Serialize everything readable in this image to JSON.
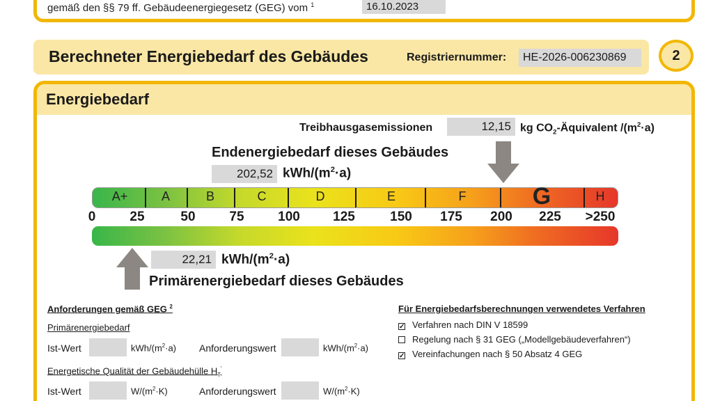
{
  "top": {
    "text": "gemäß den §§ 79 ff. Gebäudeenergiegesetz (GEG) vom",
    "footnote": "1",
    "date": "16.10.2023"
  },
  "section": {
    "title": "Berechneter Energiebedarf des Gebäudes",
    "registration_label": "Registriernummer:",
    "registration_number": "HE-2026-006230869",
    "number": "2"
  },
  "energy": {
    "heading": "Energiebedarf",
    "ghg_label": "Treibhausgasemissionen",
    "ghg_value": "12,15",
    "ghg_unit_prefix": "kg CO",
    "ghg_unit_sub": "2",
    "ghg_unit_suffix": "-Äquivalent /(m",
    "ghg_unit_sup": "2",
    "ghg_unit_end": "·a)",
    "end_label": "Endenergiebedarf dieses Gebäudes",
    "end_value": "202,52",
    "unit_prefix": "kWh/(m",
    "unit_sup": "2",
    "unit_end": "·a)",
    "primary_value": "22,21",
    "primary_label": "Primärenergiebedarf dieses Gebäudes",
    "end_value_numeric": 202.52,
    "primary_value_numeric": 22.21
  },
  "scale": {
    "classes": [
      "A+",
      "A",
      "B",
      "C",
      "D",
      "E",
      "F",
      "G",
      "H"
    ],
    "ticks": [
      "0",
      "25",
      "50",
      "75",
      "100",
      "125",
      "150",
      "175",
      "200",
      "225",
      ">250"
    ]
  },
  "requirements": {
    "title": "Anforderungen gemäß GEG",
    "title_sup": "2",
    "primary_heading": "Primärenergiebedarf",
    "actual_label": "Ist-Wert",
    "required_label": "Anforderungswert",
    "unit_kwh_prefix": "kWh/(m",
    "unit_kwh_sup": "2",
    "unit_kwh_end": "·a)",
    "envelope_heading": "Energetische Qualität der Gebäudehülle H",
    "envelope_sub": "T",
    "envelope_sup": "'",
    "unit_w_prefix": "W/(m",
    "unit_w_sup": "2",
    "unit_w_end": "·K)"
  },
  "methods": {
    "title": "Für Energiebedarfsberechnungen verwendetes Verfahren",
    "items": [
      {
        "label": "Verfahren nach DIN V 18599",
        "mark": "☑"
      },
      {
        "label": "Regelung nach § 31 GEG („Modellgebäudeverfahren“)",
        "mark": ""
      },
      {
        "label": "Vereinfachungen nach § 50 Absatz 4 GEG",
        "mark": "☑"
      }
    ]
  },
  "colors": {
    "accent": "#f2b705",
    "header_fill": "#fae7a5",
    "value_box": "#d9d9d9",
    "arrow": "#8c8782"
  }
}
